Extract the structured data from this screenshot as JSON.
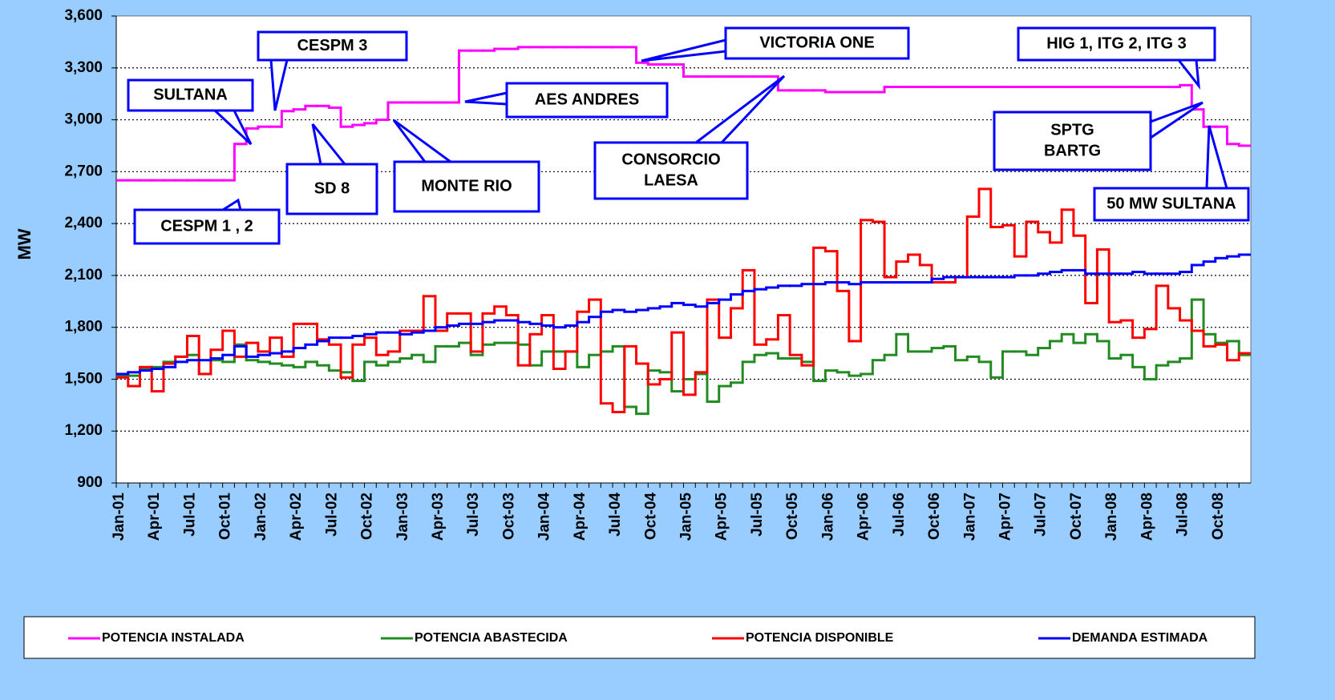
{
  "chart_data": {
    "type": "line",
    "y_label": "MW",
    "categories": [
      "Jan-01",
      null,
      null,
      "Apr-01",
      null,
      null,
      "Jul-01",
      null,
      null,
      "Oct-01",
      null,
      null,
      "Jan-02",
      null,
      null,
      "Apr-02",
      null,
      null,
      "Jul-02",
      null,
      null,
      "Oct-02",
      null,
      null,
      "Jan-03",
      null,
      null,
      "Apr-03",
      null,
      null,
      "Jul-03",
      null,
      null,
      "Oct-03",
      null,
      null,
      "Jan-04",
      null,
      null,
      "Apr-04",
      null,
      null,
      "Jul-04",
      null,
      null,
      "Oct-04",
      null,
      null,
      "Jan-05",
      null,
      null,
      "Apr-05",
      null,
      null,
      "Jul-05",
      null,
      null,
      "Oct-05",
      null,
      null,
      "Jan-06",
      null,
      null,
      "Apr-06",
      null,
      null,
      "Jul-06",
      null,
      null,
      "Oct-06",
      null,
      null,
      "Jan-07",
      null,
      null,
      "Apr-07",
      null,
      null,
      "Jul-07",
      null,
      null,
      "Oct-07",
      null,
      null,
      "Jan-08",
      null,
      null,
      "Apr-08",
      null,
      null,
      "Jul-08",
      null,
      null,
      "Oct-08",
      null,
      null
    ],
    "series": [
      {
        "name": "POTENCIA ABASTECIDA",
        "color": "#228b22",
        "values": [
          1520,
          1520,
          1560,
          1570,
          1600,
          1630,
          1640,
          1530,
          1610,
          1600,
          1700,
          1610,
          1600,
          1590,
          1580,
          1570,
          1600,
          1580,
          1550,
          1540,
          1490,
          1600,
          1580,
          1600,
          1620,
          1640,
          1600,
          1690,
          1690,
          1710,
          1640,
          1700,
          1710,
          1710,
          1700,
          1580,
          1660,
          1660,
          1660,
          1570,
          1640,
          1660,
          1690,
          1340,
          1300,
          1550,
          1540,
          1430,
          1500,
          1530,
          1370,
          1460,
          1480,
          1600,
          1640,
          1650,
          1620,
          1620,
          1600,
          1490,
          1550,
          1540,
          1520,
          1530,
          1610,
          1640,
          1760,
          1660,
          1660,
          1680,
          1690,
          1610,
          1630,
          1600,
          1510,
          1660,
          1660,
          1640,
          1680,
          1720,
          1760,
          1710,
          1760,
          1720,
          1620,
          1640,
          1570,
          1500,
          1580,
          1600,
          1620,
          1960,
          1760,
          1710,
          1720,
          1640
        ]
      },
      {
        "name": "POTENCIA DISPONIBLE",
        "color": "#ff0000",
        "values": [
          1510,
          1460,
          1570,
          1430,
          1590,
          1630,
          1750,
          1530,
          1670,
          1780,
          1630,
          1710,
          1660,
          1740,
          1630,
          1820,
          1820,
          1730,
          1700,
          1510,
          1700,
          1740,
          1640,
          1660,
          1780,
          1780,
          1980,
          1780,
          1880,
          1880,
          1660,
          1880,
          1920,
          1870,
          1580,
          1760,
          1870,
          1560,
          1660,
          1890,
          1960,
          1360,
          1310,
          1690,
          1590,
          1470,
          1500,
          1770,
          1410,
          1540,
          1960,
          1740,
          1910,
          2130,
          1700,
          1730,
          1870,
          1640,
          1580,
          2260,
          2240,
          2010,
          1720,
          2420,
          2410,
          2090,
          2180,
          2220,
          2160,
          2060,
          2060,
          2090,
          2440,
          2600,
          2380,
          2390,
          2210,
          2410,
          2350,
          2290,
          2480,
          2330,
          1940,
          2250,
          1830,
          1840,
          1740,
          1790,
          2040,
          1910,
          1840,
          1780,
          1690,
          1700,
          1610,
          1650
        ]
      },
      {
        "name": "DEMANDA ESTIMADA",
        "color": "#0000ff",
        "values": [
          1530,
          1540,
          1550,
          1560,
          1570,
          1600,
          1610,
          1610,
          1620,
          1640,
          1690,
          1630,
          1640,
          1650,
          1660,
          1680,
          1700,
          1720,
          1740,
          1740,
          1750,
          1760,
          1770,
          1770,
          1760,
          1770,
          1780,
          1800,
          1810,
          1820,
          1820,
          1830,
          1840,
          1840,
          1830,
          1820,
          1810,
          1800,
          1810,
          1830,
          1860,
          1890,
          1900,
          1890,
          1900,
          1910,
          1920,
          1940,
          1930,
          1920,
          1940,
          1960,
          1990,
          2010,
          2020,
          2030,
          2040,
          2040,
          2050,
          2050,
          2060,
          2060,
          2050,
          2060,
          2060,
          2060,
          2060,
          2060,
          2060,
          2080,
          2090,
          2090,
          2090,
          2090,
          2090,
          2090,
          2100,
          2100,
          2110,
          2120,
          2130,
          2130,
          2110,
          2110,
          2110,
          2110,
          2120,
          2110,
          2110,
          2110,
          2120,
          2160,
          2180,
          2200,
          2210,
          2220
        ]
      },
      {
        "name": "POTENCIA INSTALADA",
        "color": "#ff00ff",
        "values": [
          2650,
          2650,
          2650,
          2650,
          2650,
          2650,
          2650,
          2650,
          2650,
          2650,
          2860,
          2950,
          2960,
          2960,
          3050,
          3060,
          3080,
          3080,
          3070,
          2960,
          2970,
          2980,
          3000,
          3100,
          3100,
          3100,
          3100,
          3100,
          3100,
          3400,
          3400,
          3400,
          3410,
          3410,
          3420,
          3420,
          3420,
          3420,
          3420,
          3420,
          3420,
          3420,
          3420,
          3420,
          3330,
          3320,
          3320,
          3320,
          3250,
          3250,
          3250,
          3250,
          3250,
          3250,
          3250,
          3250,
          3170,
          3170,
          3170,
          3170,
          3160,
          3160,
          3160,
          3160,
          3160,
          3190,
          3190,
          3190,
          3190,
          3190,
          3190,
          3190,
          3190,
          3190,
          3190,
          3190,
          3190,
          3190,
          3190,
          3190,
          3190,
          3190,
          3190,
          3190,
          3190,
          3190,
          3190,
          3190,
          3190,
          3190,
          3200,
          3060,
          2960,
          2960,
          2860,
          2850
        ]
      }
    ],
    "ylim": [
      900,
      3600
    ],
    "yticks": [
      900,
      {
        "value": 1200,
        "label": "1,200"
      },
      {
        "value": 1500,
        "label": "1,500"
      },
      {
        "value": 1800,
        "label": "1,800"
      },
      {
        "value": 2100,
        "label": "2,100"
      },
      {
        "value": 2400,
        "label": "2,400"
      },
      {
        "value": 2700,
        "label": "2,700"
      },
      {
        "value": 3000,
        "label": "3,000"
      },
      {
        "value": 3300,
        "label": "3,300"
      },
      {
        "value": 3600,
        "label": "3,600"
      }
    ],
    "grid": true,
    "annotations": [
      {
        "lines": [
          "SULTANA"
        ]
      },
      {
        "lines": [
          "CESPM 3"
        ]
      },
      {
        "lines": [
          "CESPM 1 , 2"
        ]
      },
      {
        "lines": [
          "SD 8"
        ]
      },
      {
        "lines": [
          "MONTE RIO"
        ]
      },
      {
        "lines": [
          "AES ANDRES"
        ]
      },
      {
        "lines": [
          "VICTORIA ONE"
        ]
      },
      {
        "lines": [
          "CONSORCIO",
          "LAESA"
        ]
      },
      {
        "lines": [
          "HIG 1, ITG 2, ITG 3"
        ]
      },
      {
        "lines": [
          "SPTG",
          "BARTG"
        ]
      },
      {
        "lines": [
          "50 MW SULTANA"
        ]
      }
    ]
  }
}
